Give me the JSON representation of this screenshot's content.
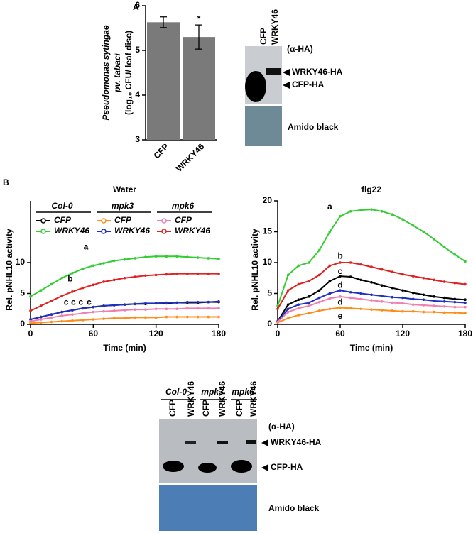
{
  "panels": [
    "A",
    "B"
  ],
  "chart_data": [
    {
      "type": "bar",
      "categories": [
        "CFP",
        "WRKY46"
      ],
      "values": [
        5.63,
        5.3
      ],
      "errors": [
        0.12,
        0.27
      ],
      "color": "#7a7a7a",
      "ylim": [
        3,
        6
      ],
      "yticks": [
        3,
        4,
        5,
        6
      ],
      "ylabel": [
        "Pseudomonas sytingae",
        "pv. tabaci",
        "(log₁₀ CFU/ leaf disc)"
      ],
      "annotations": [
        "*"
      ]
    },
    {
      "type": "line",
      "title": "Water",
      "xlabel": "Time (min)",
      "ylabel": "Rel. pNHL10 activity",
      "x": [
        0,
        10,
        20,
        30,
        40,
        50,
        60,
        70,
        80,
        90,
        100,
        110,
        120,
        130,
        140,
        150,
        160,
        170,
        180
      ],
      "xlim": [
        0,
        180
      ],
      "xticks": [
        0,
        60,
        120,
        180
      ],
      "ylim": [
        0,
        20
      ],
      "yticks": [
        0,
        5,
        10
      ],
      "legend_groups": [
        "Col-0",
        "mpk3",
        "mpk6"
      ],
      "series": [
        {
          "name": "CFP",
          "color": "#000000",
          "values": [
            0.8,
            1.2,
            1.6,
            2.0,
            2.3,
            2.6,
            2.8,
            3.0,
            3.1,
            3.2,
            3.3,
            3.3,
            3.4,
            3.4,
            3.5,
            3.5,
            3.5,
            3.6,
            3.6
          ]
        },
        {
          "name": "WRKY46",
          "color": "#33cc33",
          "values": [
            4.5,
            5.5,
            6.5,
            7.5,
            8.3,
            9.0,
            9.5,
            9.9,
            10.3,
            10.5,
            10.7,
            10.9,
            11.0,
            11.0,
            11.0,
            10.9,
            10.8,
            10.7,
            10.6
          ]
        },
        {
          "name": "CFP",
          "color": "#ff8c1a",
          "values": [
            0.2,
            0.3,
            0.4,
            0.5,
            0.6,
            0.7,
            0.8,
            0.9,
            1.0,
            1.0,
            1.1,
            1.1,
            1.1,
            1.2,
            1.2,
            1.2,
            1.2,
            1.2,
            1.2
          ]
        },
        {
          "name": "WRKY46",
          "color": "#1f2fbf",
          "values": [
            0.8,
            1.2,
            1.6,
            2.0,
            2.3,
            2.6,
            2.8,
            3.0,
            3.1,
            3.2,
            3.3,
            3.4,
            3.4,
            3.5,
            3.5,
            3.6,
            3.6,
            3.6,
            3.7
          ]
        },
        {
          "name": "CFP",
          "color": "#ee7fb0",
          "values": [
            0.5,
            0.8,
            1.1,
            1.4,
            1.6,
            1.8,
            2.0,
            2.1,
            2.2,
            2.3,
            2.4,
            2.4,
            2.5,
            2.5,
            2.5,
            2.6,
            2.6,
            2.6,
            2.6
          ]
        },
        {
          "name": "WRKY46",
          "color": "#dd2222",
          "values": [
            2.2,
            3.0,
            3.8,
            4.6,
            5.3,
            5.9,
            6.4,
            6.9,
            7.2,
            7.5,
            7.7,
            7.9,
            8.0,
            8.1,
            8.2,
            8.2,
            8.2,
            8.2,
            8.2
          ]
        }
      ],
      "annotations": [
        {
          "text": "a",
          "color": "#33cc33"
        },
        {
          "text": "b",
          "color": "#dd2222"
        },
        {
          "text": "c",
          "color": "#000000"
        },
        {
          "text": "c",
          "color": "#ee7fb0"
        },
        {
          "text": "c",
          "color": "#1f2fbf"
        },
        {
          "text": "c",
          "color": "#ff8c1a"
        }
      ]
    },
    {
      "type": "line",
      "title": "flg22",
      "xlabel": "Time (min)",
      "ylabel": "Rel. pNHL10 activity",
      "x": [
        0,
        10,
        20,
        30,
        40,
        50,
        60,
        70,
        80,
        90,
        100,
        110,
        120,
        130,
        140,
        150,
        160,
        170,
        180
      ],
      "xlim": [
        0,
        180
      ],
      "xticks": [
        0,
        60,
        120,
        180
      ],
      "ylim": [
        0,
        20
      ],
      "yticks": [
        0,
        5,
        10,
        15,
        20
      ],
      "series": [
        {
          "color": "#000000",
          "values": [
            0.5,
            3.2,
            4,
            4.5,
            5.5,
            7,
            7.8,
            7.7,
            7.2,
            6.8,
            6.3,
            5.9,
            5.5,
            5.1,
            4.8,
            4.5,
            4.3,
            4.1,
            4
          ]
        },
        {
          "color": "#33cc33",
          "values": [
            3,
            8,
            9.5,
            10,
            12,
            15,
            17.5,
            18.3,
            18.5,
            18.6,
            18.3,
            17.8,
            17,
            16,
            15,
            13.8,
            12.5,
            11.3,
            10.2
          ]
        },
        {
          "color": "#ff8c1a",
          "values": [
            0.3,
            1,
            1.5,
            1.8,
            2.2,
            2.5,
            2.7,
            2.6,
            2.5,
            2.4,
            2.3,
            2.2,
            2.1,
            2.1,
            2,
            2,
            1.9,
            1.9,
            1.8
          ]
        },
        {
          "color": "#1f2fbf",
          "values": [
            0.5,
            2.5,
            3.2,
            3.5,
            4.3,
            5,
            5.5,
            5.2,
            5,
            4.8,
            4.6,
            4.4,
            4.3,
            4.1,
            4,
            3.8,
            3.7,
            3.6,
            3.5
          ]
        },
        {
          "color": "#ee7fb0",
          "values": [
            0.4,
            2,
            2.6,
            3,
            3.6,
            4.2,
            4.5,
            4.3,
            4.1,
            3.9,
            3.7,
            3.5,
            3.4,
            3.2,
            3.1,
            3,
            2.9,
            2.8,
            2.8
          ]
        },
        {
          "color": "#dd2222",
          "values": [
            2.5,
            5.5,
            6.5,
            7,
            8,
            9.5,
            10,
            10,
            9.7,
            9.3,
            8.9,
            8.5,
            8.1,
            7.8,
            7.5,
            7.2,
            6.9,
            6.7,
            6.5
          ]
        }
      ],
      "annotations": [
        {
          "text": "a",
          "color": "#33cc33"
        },
        {
          "text": "b",
          "color": "#dd2222"
        },
        {
          "text": "c",
          "color": "#000000"
        },
        {
          "text": "d",
          "color": "#1f2fbf"
        },
        {
          "text": "d",
          "color": "#ee7fb0"
        },
        {
          "text": "e",
          "color": "#ff8c1a"
        }
      ]
    }
  ],
  "blot_a": {
    "lanes": [
      "CFP",
      "WRKY46"
    ],
    "antibody": "(α-HA)",
    "bands": [
      "WRKY46-HA",
      "CFP-HA"
    ],
    "stain": "Amido black"
  },
  "blot_b": {
    "genotypes": [
      "Col-0",
      "mpk3",
      "mpk6"
    ],
    "lanes": [
      "CFP",
      "WRKY46",
      "CFP",
      "WRKY46",
      "CFP",
      "WRKY46"
    ],
    "antibody": "(α-HA)",
    "bands": [
      "WRKY46-HA",
      "CFP-HA"
    ],
    "stain": "Amido black"
  }
}
